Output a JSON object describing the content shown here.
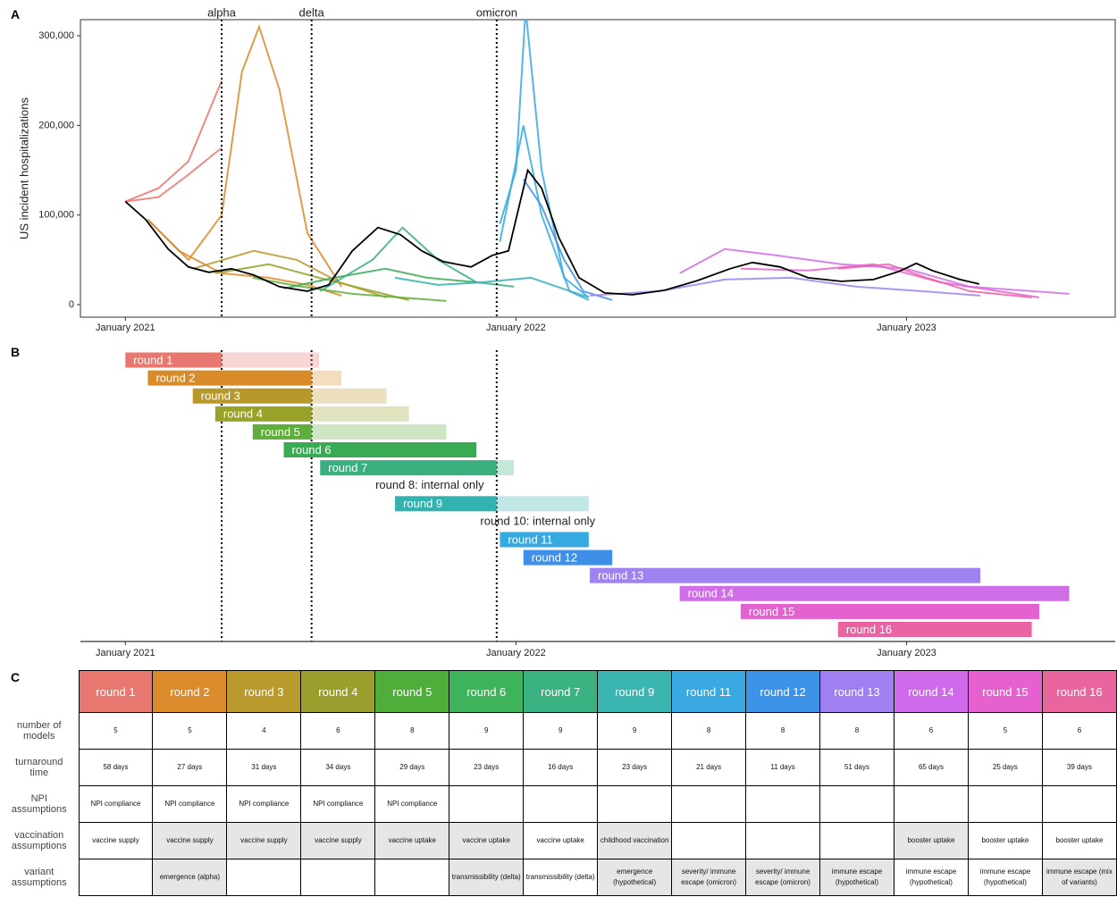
{
  "panel_labels": [
    "A",
    "B",
    "C"
  ],
  "chart_data": [
    {
      "type": "line",
      "ylabel": "US incident hospitalizations",
      "xlim": [
        "2020-11-20",
        "2023-07-15"
      ],
      "xticks": [
        {
          "value": "2021-01-01",
          "label": "January 2021"
        },
        {
          "value": "2022-01-01",
          "label": "January 2022"
        },
        {
          "value": "2023-01-01",
          "label": "January 2023"
        }
      ],
      "ylim": [
        -14000,
        318000
      ],
      "yticks": [
        0,
        {
          "value": 100000,
          "label": "100,000"
        },
        {
          "value": 200000,
          "label": "200,000"
        },
        {
          "value": 300000,
          "label": "300,000"
        }
      ],
      "grid": false,
      "events": [
        {
          "label": "alpha",
          "x": "2021-04-01"
        },
        {
          "label": "delta",
          "x": "2021-06-24"
        },
        {
          "label": "omicron",
          "x": "2021-12-14"
        }
      ],
      "series": [
        {
          "color": "#e8776f",
          "x": [
            "2021-01-01",
            "2021-02-01",
            "2021-03-01",
            "2021-04-01"
          ],
          "values": [
            115000,
            130000,
            160000,
            250000
          ]
        },
        {
          "color": "#e8776f",
          "x": [
            "2021-01-01",
            "2021-02-01",
            "2021-03-01",
            "2021-04-01"
          ],
          "values": [
            115000,
            120000,
            145000,
            175000
          ]
        },
        {
          "color": "#d98b2a",
          "x": [
            "2021-01-22",
            "2021-03-01",
            "2021-04-01",
            "2021-04-20",
            "2021-05-06",
            "2021-05-25",
            "2021-06-20",
            "2021-07-22"
          ],
          "values": [
            95000,
            50000,
            100000,
            260000,
            310000,
            240000,
            80000,
            20000
          ]
        },
        {
          "color": "#d98b2a",
          "x": [
            "2021-01-22",
            "2021-02-20",
            "2021-04-01",
            "2021-05-15",
            "2021-06-20",
            "2021-07-22"
          ],
          "values": [
            95000,
            60000,
            35000,
            30000,
            22000,
            10000
          ]
        },
        {
          "color": "#b8982a",
          "x": [
            "2021-03-05",
            "2021-05-01",
            "2021-06-10",
            "2021-07-20",
            "2021-09-02"
          ],
          "values": [
            40000,
            60000,
            50000,
            25000,
            8000
          ]
        },
        {
          "color": "#98a128",
          "x": [
            "2021-03-26",
            "2021-05-15",
            "2021-07-01",
            "2021-09-23"
          ],
          "values": [
            35000,
            45000,
            30000,
            5000
          ]
        },
        {
          "color": "#5fad3a",
          "x": [
            "2021-04-30",
            "2021-06-15",
            "2021-08-01",
            "2021-10-28"
          ],
          "values": [
            30000,
            20000,
            12000,
            4000
          ]
        },
        {
          "color": "#3aaa55",
          "x": [
            "2021-05-29",
            "2021-07-15",
            "2021-09-01",
            "2021-10-10",
            "2021-11-25"
          ],
          "values": [
            18000,
            30000,
            40000,
            30000,
            25000
          ]
        },
        {
          "color": "#3aaf80",
          "x": [
            "2021-07-02",
            "2021-08-20",
            "2021-09-17",
            "2021-10-20",
            "2021-11-25",
            "2021-12-30"
          ],
          "values": [
            15000,
            50000,
            86000,
            50000,
            25000,
            20000
          ]
        },
        {
          "color": "#33b3b0",
          "x": [
            "2021-09-10",
            "2021-10-20",
            "2021-12-01",
            "2022-01-15",
            "2022-03-10"
          ],
          "values": [
            30000,
            22000,
            25000,
            30000,
            8000
          ]
        },
        {
          "color": "#36a9e0",
          "x": [
            "2021-12-17",
            "2022-01-01",
            "2022-01-10",
            "2022-01-25",
            "2022-02-15",
            "2022-03-10"
          ],
          "values": [
            90000,
            150000,
            330000,
            150000,
            30000,
            8000
          ]
        },
        {
          "color": "#36a9e0",
          "x": [
            "2021-12-17",
            "2022-01-08",
            "2022-01-25",
            "2022-02-20",
            "2022-03-10"
          ],
          "values": [
            70000,
            200000,
            100000,
            15000,
            5000
          ]
        },
        {
          "color": "#3d8fe8",
          "x": [
            "2022-01-08",
            "2022-01-25",
            "2022-02-15",
            "2022-03-05",
            "2022-04-01"
          ],
          "values": [
            140000,
            110000,
            50000,
            15000,
            5000
          ]
        },
        {
          "color": "#9f82f0",
          "x": [
            "2022-03-11",
            "2022-05-15",
            "2022-07-15",
            "2022-09-15",
            "2022-11-15",
            "2023-01-15",
            "2023-03-11"
          ],
          "values": [
            10000,
            15000,
            28000,
            30000,
            20000,
            15000,
            10000
          ]
        },
        {
          "color": "#cf6ee6",
          "x": [
            "2022-06-03",
            "2022-07-15",
            "2022-09-01",
            "2022-11-01",
            "2023-01-01",
            "2023-03-01",
            "2023-06-02"
          ],
          "values": [
            35000,
            62000,
            55000,
            45000,
            40000,
            20000,
            12000
          ]
        },
        {
          "color": "#e461d0",
          "x": [
            "2022-07-30",
            "2022-10-01",
            "2022-12-01",
            "2023-02-01",
            "2023-05-05"
          ],
          "values": [
            40000,
            38000,
            45000,
            25000,
            8000
          ]
        },
        {
          "color": "#e963a2",
          "x": [
            "2022-10-29",
            "2022-12-15",
            "2023-01-20",
            "2023-03-01",
            "2023-04-28"
          ],
          "values": [
            40000,
            45000,
            30000,
            15000,
            8000
          ]
        },
        {
          "color": "#000000",
          "x": [
            "2021-01-01",
            "2021-01-20",
            "2021-02-10",
            "2021-03-01",
            "2021-03-20",
            "2021-04-10",
            "2021-05-01",
            "2021-05-25",
            "2021-06-20",
            "2021-07-10",
            "2021-08-01",
            "2021-08-25",
            "2021-09-15",
            "2021-10-05",
            "2021-10-25",
            "2021-11-20",
            "2021-12-10",
            "2021-12-25",
            "2022-01-12",
            "2022-01-25",
            "2022-02-10",
            "2022-03-01",
            "2022-03-25",
            "2022-04-20",
            "2022-05-20",
            "2022-06-20",
            "2022-07-20",
            "2022-08-10",
            "2022-09-05",
            "2022-10-01",
            "2022-11-01",
            "2022-12-01",
            "2022-12-25",
            "2023-01-10",
            "2023-01-25",
            "2023-02-20",
            "2023-03-10"
          ],
          "values": [
            115000,
            95000,
            62000,
            42000,
            36000,
            40000,
            33000,
            20000,
            15000,
            22000,
            60000,
            86000,
            78000,
            60000,
            48000,
            42000,
            55000,
            60000,
            150000,
            130000,
            75000,
            30000,
            13000,
            11000,
            16000,
            27000,
            40000,
            47000,
            42000,
            30000,
            26000,
            28000,
            37000,
            46000,
            38000,
            28000,
            23000
          ]
        }
      ]
    },
    {
      "type": "gantt",
      "xlim": [
        "2020-11-20",
        "2023-07-15"
      ],
      "xticks": [
        {
          "value": "2021-01-01",
          "label": "January 2021"
        },
        {
          "value": "2022-01-01",
          "label": "January 2022"
        },
        {
          "value": "2023-01-01",
          "label": "January 2023"
        }
      ],
      "bars": [
        {
          "label": "round 1",
          "color": "#e8776f",
          "start": "2021-01-01",
          "shade_from": "2021-04-01",
          "end": "2021-07-01"
        },
        {
          "label": "round 2",
          "color": "#d98b2a",
          "start": "2021-01-22",
          "shade_from": "2021-06-24",
          "end": "2021-07-22"
        },
        {
          "label": "round 3",
          "color": "#b8982a",
          "start": "2021-03-05",
          "shade_from": "2021-06-24",
          "end": "2021-09-02"
        },
        {
          "label": "round 4",
          "color": "#98a128",
          "start": "2021-03-26",
          "shade_from": "2021-06-24",
          "end": "2021-09-23"
        },
        {
          "label": "round 5",
          "color": "#5fad3a",
          "start": "2021-04-30",
          "shade_from": "2021-06-24",
          "end": "2021-10-28"
        },
        {
          "label": "round 6",
          "color": "#3aaa55",
          "start": "2021-05-29",
          "shade_from": null,
          "end": "2021-11-25"
        },
        {
          "label": "round 7",
          "color": "#3aaf80",
          "start": "2021-07-02",
          "shade_from": "2021-12-14",
          "end": "2021-12-30"
        },
        {
          "label": "round 8: internal only",
          "color": null,
          "start": null,
          "shade_from": null,
          "end": null
        },
        {
          "label": "round 9",
          "color": "#33b3b0",
          "start": "2021-09-10",
          "shade_from": "2021-12-14",
          "end": "2022-03-10"
        },
        {
          "label": "round 10: internal only",
          "color": null,
          "start": null,
          "shade_from": null,
          "end": null
        },
        {
          "label": "round 11",
          "color": "#36a9e0",
          "start": "2021-12-17",
          "shade_from": null,
          "end": "2022-03-10"
        },
        {
          "label": "round 12",
          "color": "#3d8fe8",
          "start": "2022-01-08",
          "shade_from": null,
          "end": "2022-04-01"
        },
        {
          "label": "round 13",
          "color": "#9f82f0",
          "start": "2022-03-11",
          "shade_from": null,
          "end": "2023-03-11"
        },
        {
          "label": "round 14",
          "color": "#cf6ee6",
          "start": "2022-06-03",
          "shade_from": null,
          "end": "2023-06-02"
        },
        {
          "label": "round 15",
          "color": "#e461d0",
          "start": "2022-07-30",
          "shade_from": null,
          "end": "2023-05-05"
        },
        {
          "label": "round 16",
          "color": "#e963a2",
          "start": "2022-10-29",
          "shade_from": null,
          "end": "2023-04-28"
        }
      ]
    }
  ],
  "table": {
    "header": [
      "round 1",
      "round 2",
      "round 3",
      "round 4",
      "round 5",
      "round 6",
      "round 7",
      "round 9",
      "round 11",
      "round 12",
      "round 13",
      "round 14",
      "round 15",
      "round 16"
    ],
    "header_colors": [
      "#e8776f",
      "#db8a2c",
      "#b89a2d",
      "#9a9e2d",
      "#4fae39",
      "#3db35a",
      "#3bb282",
      "#3ab5af",
      "#3aa9e2",
      "#3c93e8",
      "#a07ff2",
      "#cf6aea",
      "#e660d0",
      "#e8659e"
    ],
    "rows": [
      {
        "label": "number of models",
        "cells": [
          5,
          5,
          4,
          6,
          8,
          9,
          9,
          9,
          8,
          8,
          8,
          6,
          5,
          6
        ],
        "shaded": []
      },
      {
        "label": "turnaround time",
        "cells": [
          "58 days",
          "27 days",
          "31 days",
          "34 days",
          "29 days",
          "23 days",
          "16 days",
          "23 days",
          "21 days",
          "11 days",
          "51 days",
          "65 days",
          "25 days",
          "39 days"
        ],
        "shaded": []
      },
      {
        "label": "NPI assumptions",
        "cells": [
          "NPI compliance",
          "NPI compliance",
          "NPI compliance",
          "NPI compliance",
          "NPI compliance",
          null,
          null,
          null,
          null,
          null,
          null,
          null,
          null,
          null
        ],
        "shaded": []
      },
      {
        "label": "vaccination assumptions",
        "cells": [
          "vaccine supply",
          "vaccine supply",
          "vaccine supply",
          "vaccine supply",
          "vaccine uptake",
          "vaccine uptake",
          "vaccine uptake",
          "childhood vaccination",
          null,
          null,
          null,
          "booster uptake",
          "booster uptake",
          "booster uptake"
        ],
        "shaded": [
          1,
          2,
          3,
          4,
          5,
          7,
          11
        ]
      },
      {
        "label": "variant assumptions",
        "cells": [
          null,
          "emergence (alpha)",
          null,
          null,
          null,
          "transmissibility (delta)",
          "transmissibility (delta)",
          "emergence (hypothetical)",
          "severity/ immune escape (omicron)",
          "severity/ immune escape (omicron)",
          "immune escape (hypothetical)",
          "immune escape (hypothetical)",
          "immune escape (hypothetical)",
          "immune escape (mix of variants)"
        ],
        "shaded": [
          1,
          5,
          7,
          8,
          9,
          10,
          13
        ]
      }
    ]
  }
}
